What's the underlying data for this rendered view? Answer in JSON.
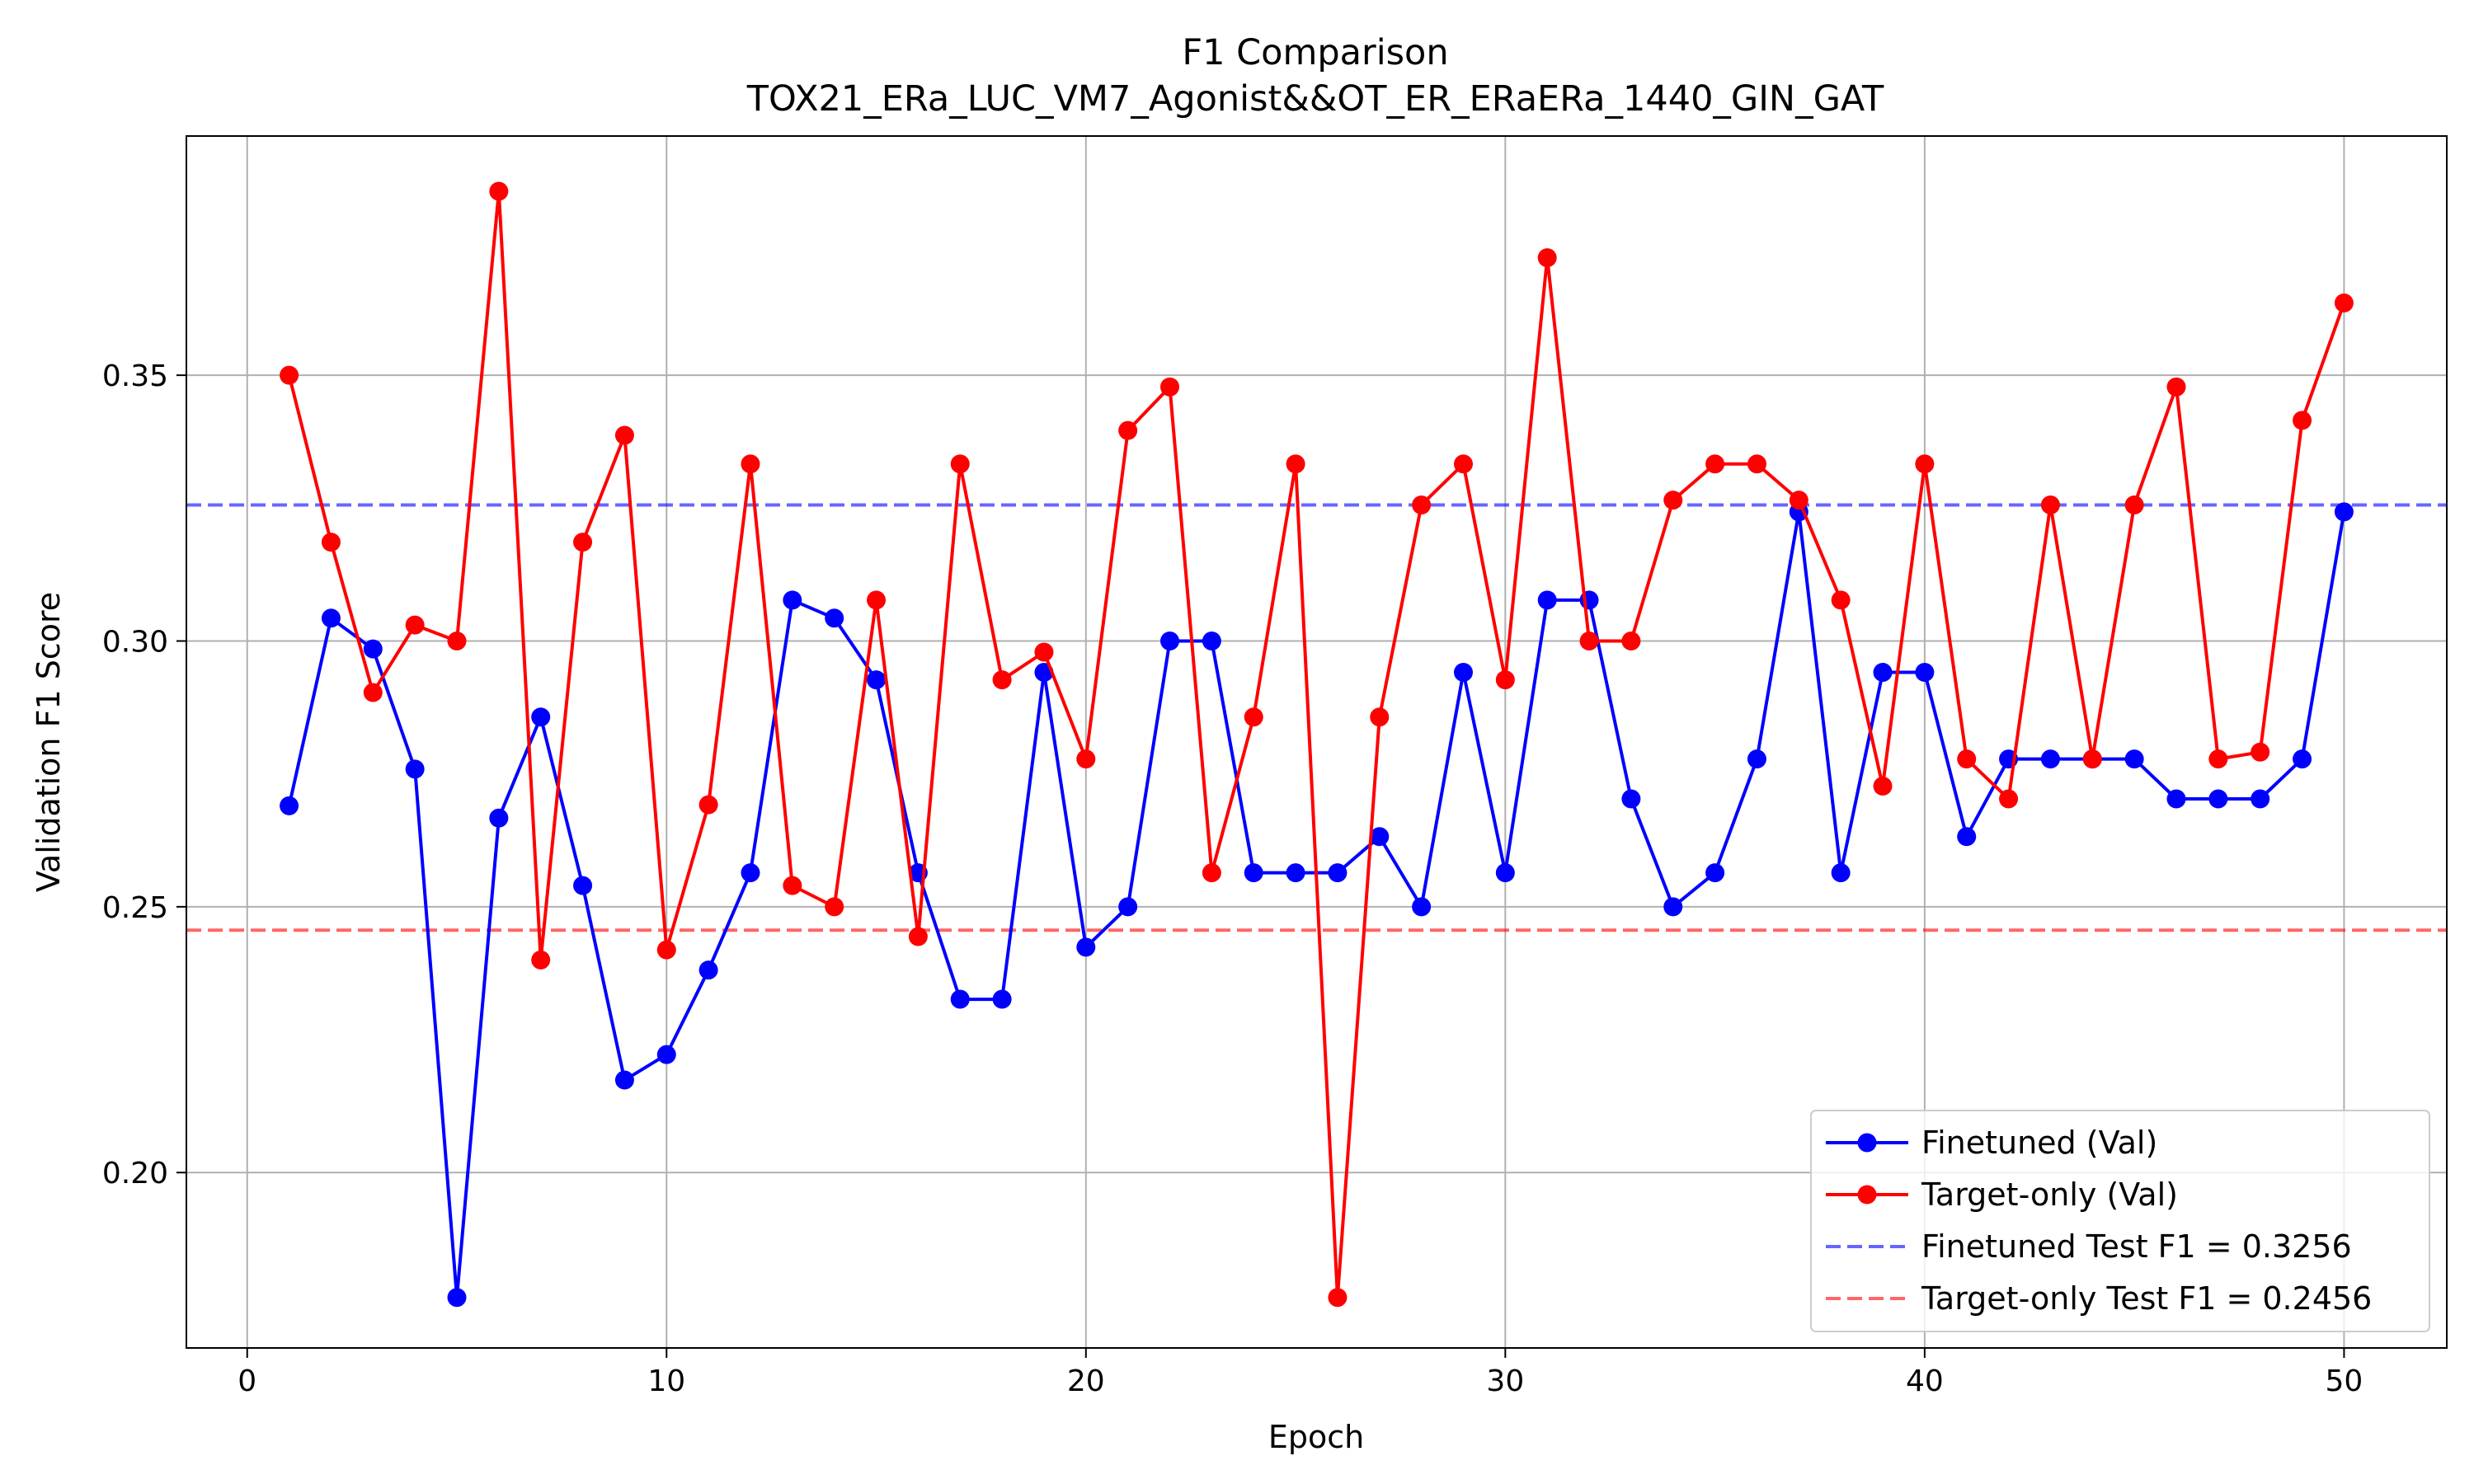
{
  "chart_data": {
    "type": "line",
    "title": "F1 Comparison",
    "subtitle": "TOX21_ERa_LUC_VM7_Agonist&&OT_ER_ERaERa_1440_GIN_GAT",
    "xlabel": "Epoch",
    "ylabel": "Validation F1 Score",
    "xlim": [
      -1.45,
      52.45
    ],
    "ylim": [
      0.167,
      0.395
    ],
    "xticks": [
      0,
      10,
      20,
      30,
      40,
      50
    ],
    "xtick_labels": [
      "0",
      "10",
      "20",
      "30",
      "40",
      "50"
    ],
    "yticks": [
      0.2,
      0.25,
      0.3,
      0.35
    ],
    "ytick_labels": [
      "0.20",
      "0.25",
      "0.30",
      "0.35"
    ],
    "grid": true,
    "legend_position": "lower-right",
    "x": [
      1,
      2,
      3,
      4,
      5,
      6,
      7,
      8,
      9,
      10,
      11,
      12,
      13,
      14,
      15,
      16,
      17,
      18,
      19,
      20,
      21,
      22,
      23,
      24,
      25,
      26,
      27,
      28,
      29,
      30,
      31,
      32,
      33,
      34,
      35,
      36,
      37,
      38,
      39,
      40,
      41,
      42,
      43,
      44,
      45,
      46,
      47,
      48,
      49,
      50
    ],
    "series": [
      {
        "name": "Finetuned (Val)",
        "color": "#0000ff",
        "marker": "circle",
        "values": [
          0.269,
          0.3043,
          0.2985,
          0.2759,
          0.1765,
          0.2667,
          0.2857,
          0.254,
          0.2174,
          0.2222,
          0.2381,
          0.2564,
          0.3077,
          0.3043,
          0.2927,
          0.2564,
          0.2326,
          0.2326,
          0.2941,
          0.2424,
          0.25,
          0.3,
          0.3,
          0.2564,
          0.2564,
          0.2564,
          0.2632,
          0.25,
          0.2941,
          0.2564,
          0.3077,
          0.3077,
          0.2703,
          0.25,
          0.2564,
          0.2778,
          0.3243,
          0.2564,
          0.2941,
          0.2941,
          0.2632,
          0.2778,
          0.2778,
          0.2778,
          0.2778,
          0.2703,
          0.2703,
          0.2703,
          0.2778,
          0.3243
        ]
      },
      {
        "name": "Target-only (Val)",
        "color": "#ff0000",
        "marker": "circle",
        "values": [
          0.35,
          0.3186,
          0.2903,
          0.303,
          0.3,
          0.3846,
          0.24,
          0.3186,
          0.3387,
          0.2419,
          0.2692,
          0.3333,
          0.254,
          0.25,
          0.3077,
          0.2444,
          0.3333,
          0.2927,
          0.2979,
          0.2778,
          0.3396,
          0.3478,
          0.2564,
          0.2857,
          0.3333,
          0.1765,
          0.2857,
          0.3256,
          0.3333,
          0.2927,
          0.3721,
          0.3,
          0.3,
          0.3265,
          0.3333,
          0.3333,
          0.3265,
          0.3077,
          0.2727,
          0.3333,
          0.2778,
          0.2703,
          0.3256,
          0.2778,
          0.3256,
          0.3478,
          0.2778,
          0.2791,
          0.3415,
          0.3636
        ]
      }
    ],
    "reference_lines": [
      {
        "name": "Finetuned Test F1 = 0.3256",
        "value": 0.3256,
        "color": "#0000ff",
        "style": "dashed"
      },
      {
        "name": "Target-only Test F1 = 0.2456",
        "value": 0.2456,
        "color": "#ff0000",
        "style": "dashed"
      }
    ]
  }
}
